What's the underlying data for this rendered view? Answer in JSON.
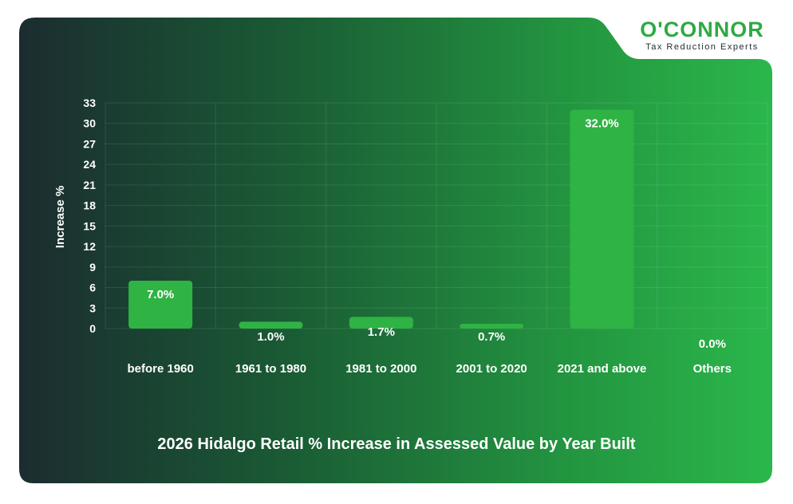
{
  "logo": {
    "brand": "O'CONNOR",
    "tagline": "Tax Reduction Experts"
  },
  "colors": {
    "bar": "#2fb344",
    "background_dark": "#1a2f31",
    "background_light": "#2bb54b",
    "logo_green": "#2eaa43"
  },
  "chart_data": {
    "type": "bar",
    "title": "2026 Hidalgo Retail % Increase in Assessed Value by Year Built",
    "xlabel": "",
    "ylabel": "Increase %",
    "ylim": [
      0,
      33
    ],
    "yticks": [
      "0",
      "3",
      "6",
      "9",
      "12",
      "15",
      "18",
      "21",
      "24",
      "27",
      "30",
      "33"
    ],
    "grid": true,
    "categories": [
      "before 1960",
      "1961 to 1980",
      "1981 to 2000",
      "2001 to 2020",
      "2021 and above",
      "Others"
    ],
    "values": [
      7.0,
      1.0,
      1.7,
      0.7,
      32.0,
      0.0
    ],
    "labels": [
      "7.0%",
      "1.0%",
      "1.7%",
      "0.7%",
      "32.0%",
      "0.0%"
    ]
  }
}
